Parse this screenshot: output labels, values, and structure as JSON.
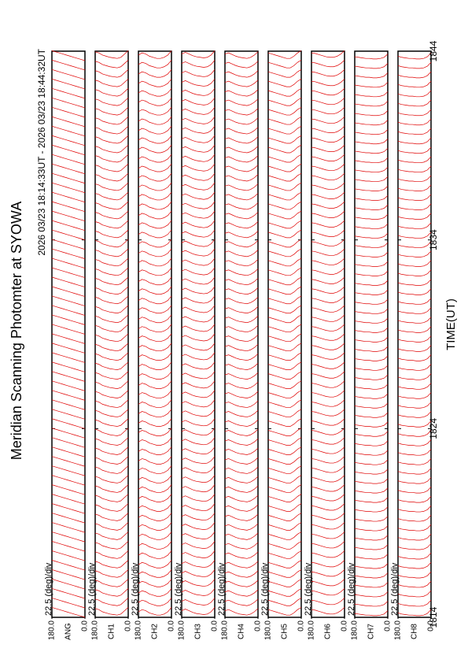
{
  "chart_data": {
    "type": "scan-stack",
    "title": "Meridian Scanning Photomter at SYOWA",
    "subtitle": "2026 03/23 18:14:33UT - 2026 03/23 18:44:32UT",
    "xlabel": "TIME(UT)",
    "xlim": [
      1814,
      1844
    ],
    "xticks": [
      1814,
      1824,
      1834,
      1844
    ],
    "color": "#e00000",
    "scan_times": [
      1814,
      1814.5,
      1815,
      1815.5,
      1816,
      1816.5,
      1817,
      1817.5,
      1818,
      1818.5,
      1819,
      1819.5,
      1820,
      1820.5,
      1821,
      1821.5,
      1822,
      1822.5,
      1823,
      1823.5,
      1824,
      1824.5,
      1825,
      1825.5,
      1826,
      1826.5,
      1827,
      1827.5,
      1828,
      1828.5,
      1829,
      1829.5,
      1830,
      1830.5,
      1831,
      1831.5,
      1832,
      1832.5,
      1833,
      1833.5,
      1834,
      1834.5,
      1835,
      1835.5,
      1836,
      1836.5,
      1837,
      1837.5,
      1838,
      1838.5,
      1839,
      1839.5,
      1840,
      1840.5,
      1841,
      1841.5,
      1842,
      1842.5,
      1843,
      1843.5
    ],
    "panels": [
      {
        "channel": "ANG",
        "scale": "22.5 (deg)/div",
        "yticks": [
          {
            "value": 0,
            "label": "0.0"
          },
          {
            "value": 180,
            "label": "180.0"
          }
        ],
        "ylim": [
          0,
          180
        ],
        "profile": [
          0.0,
          0.1,
          0.2,
          0.3,
          0.4,
          0.5,
          0.6,
          0.7,
          0.8,
          0.9
        ]
      },
      {
        "channel": "CH1",
        "scale": "22.5 (deg)/div",
        "yticks": [
          {
            "value": 0,
            "label": "0.0"
          },
          {
            "value": 180,
            "label": "180.0"
          }
        ],
        "ylim": [
          0,
          180
        ],
        "profile": [
          0.9,
          0.6,
          0.3,
          0.2,
          0.25,
          0.3,
          0.4,
          0.5,
          0.7,
          0.8
        ]
      },
      {
        "channel": "CH2",
        "scale": "22.5 (deg)/div",
        "yticks": [
          {
            "value": 0,
            "label": "0.0"
          },
          {
            "value": 180,
            "label": "180.0"
          }
        ],
        "ylim": [
          0,
          180
        ],
        "profile": [
          0.9,
          0.5,
          0.3,
          0.2,
          0.2,
          0.3,
          0.4,
          0.6,
          0.7,
          0.5
        ]
      },
      {
        "channel": "CH3",
        "scale": "22.5 (deg)/div",
        "yticks": [
          {
            "value": 0,
            "label": "0.0"
          },
          {
            "value": 180,
            "label": "180.0"
          }
        ],
        "ylim": [
          0,
          180
        ],
        "profile": [
          0.9,
          0.5,
          0.3,
          0.25,
          0.3,
          0.35,
          0.45,
          0.6,
          0.75,
          0.6
        ]
      },
      {
        "channel": "CH4",
        "scale": "22.5 (deg)/div",
        "yticks": [
          {
            "value": 0,
            "label": "0.0"
          },
          {
            "value": 180,
            "label": "180.0"
          }
        ],
        "ylim": [
          0,
          180
        ],
        "profile": [
          0.8,
          0.5,
          0.3,
          0.2,
          0.25,
          0.3,
          0.4,
          0.55,
          0.7,
          0.6
        ]
      },
      {
        "channel": "CH5",
        "scale": "22.5 (deg)/div",
        "yticks": [
          {
            "value": 0,
            "label": "0.0"
          },
          {
            "value": 180,
            "label": "180.0"
          }
        ],
        "ylim": [
          0,
          180
        ],
        "profile": [
          0.9,
          0.7,
          0.4,
          0.2,
          0.2,
          0.3,
          0.4,
          0.5,
          0.6,
          0.7
        ]
      },
      {
        "channel": "CH6",
        "scale": "22.5 (deg)/div",
        "yticks": [
          {
            "value": 0,
            "label": "0.0"
          },
          {
            "value": 180,
            "label": "180.0"
          }
        ],
        "ylim": [
          0,
          180
        ],
        "profile": [
          0.9,
          0.6,
          0.4,
          0.3,
          0.3,
          0.35,
          0.45,
          0.55,
          0.65,
          0.7
        ]
      },
      {
        "channel": "CH7",
        "scale": "22.5 (deg)/div",
        "yticks": [
          {
            "value": 0,
            "label": "0.0"
          },
          {
            "value": 180,
            "label": "180.0"
          }
        ],
        "ylim": [
          0,
          180
        ],
        "profile": [
          0.6,
          0.3,
          0.2,
          0.15,
          0.15,
          0.2,
          0.2,
          0.25,
          0.3,
          0.35
        ]
      },
      {
        "channel": "CH8",
        "scale": "22.5 (deg)/div",
        "yticks": [
          {
            "value": 0,
            "label": "0.0"
          },
          {
            "value": 180,
            "label": "180.0"
          }
        ],
        "ylim": [
          0,
          180
        ],
        "profile": [
          0.7,
          0.35,
          0.2,
          0.15,
          0.15,
          0.2,
          0.2,
          0.25,
          0.3,
          0.4
        ]
      }
    ]
  }
}
